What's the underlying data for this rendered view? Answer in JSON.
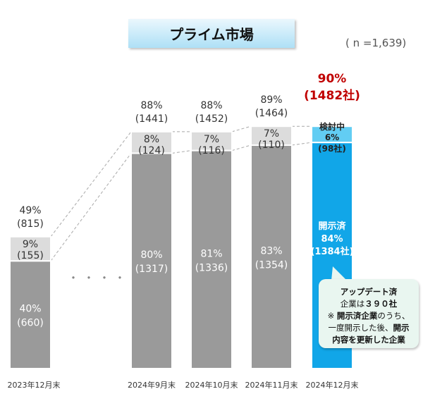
{
  "title": "プライム市場",
  "sample_note": "( n =1,639)",
  "ellipsis": "・・・・",
  "colors": {
    "bar_gray": "#9a9a9a",
    "bar_light": "#dcdcdc",
    "bar_blue": "#11a6e8",
    "bar_light_blue": "#62cdf3",
    "highlight_red": "#c00000",
    "callout_bg": "#e9f6f0"
  },
  "callout": {
    "line1": "アップデート済",
    "line2_pre": "企業は",
    "line2_bold": "３９０社",
    "line3_pre": "※ ",
    "line3_bold": "開示済企業",
    "line3_post": "のうち、",
    "line4_pre": "一度開示した後、",
    "line4_bold": "開示",
    "line5": "内容を更新した企業"
  },
  "chart_data": {
    "type": "bar",
    "stacked": true,
    "categories": [
      "2023年12月末",
      "2024年9月末",
      "2024年10月末",
      "2024年11月末",
      "2024年12月末"
    ],
    "series": [
      {
        "name": "開示済",
        "values": [
          40,
          80,
          81,
          83,
          84
        ],
        "labels": [
          "40%",
          "80%",
          "81%",
          "83%",
          "84%"
        ],
        "counts": [
          "(660)",
          "(1317)",
          "(1336)",
          "(1354)",
          "(1384社)"
        ],
        "last_name_label": "開示済"
      },
      {
        "name": "検討中",
        "values": [
          9,
          8,
          7,
          7,
          6
        ],
        "labels": [
          "9%",
          "8%",
          "7%",
          "7%",
          "6%"
        ],
        "counts": [
          "(155)",
          "(124)",
          "(116)",
          "(110)",
          "(98社)"
        ],
        "last_name_label": "検討中"
      }
    ],
    "totals": {
      "labels": [
        "49%",
        "88%",
        "88%",
        "89%",
        "90%"
      ],
      "counts": [
        "(815)",
        "(1441)",
        "(1452)",
        "(1464)",
        "(1482社)"
      ]
    },
    "ylim": [
      0,
      100
    ]
  }
}
